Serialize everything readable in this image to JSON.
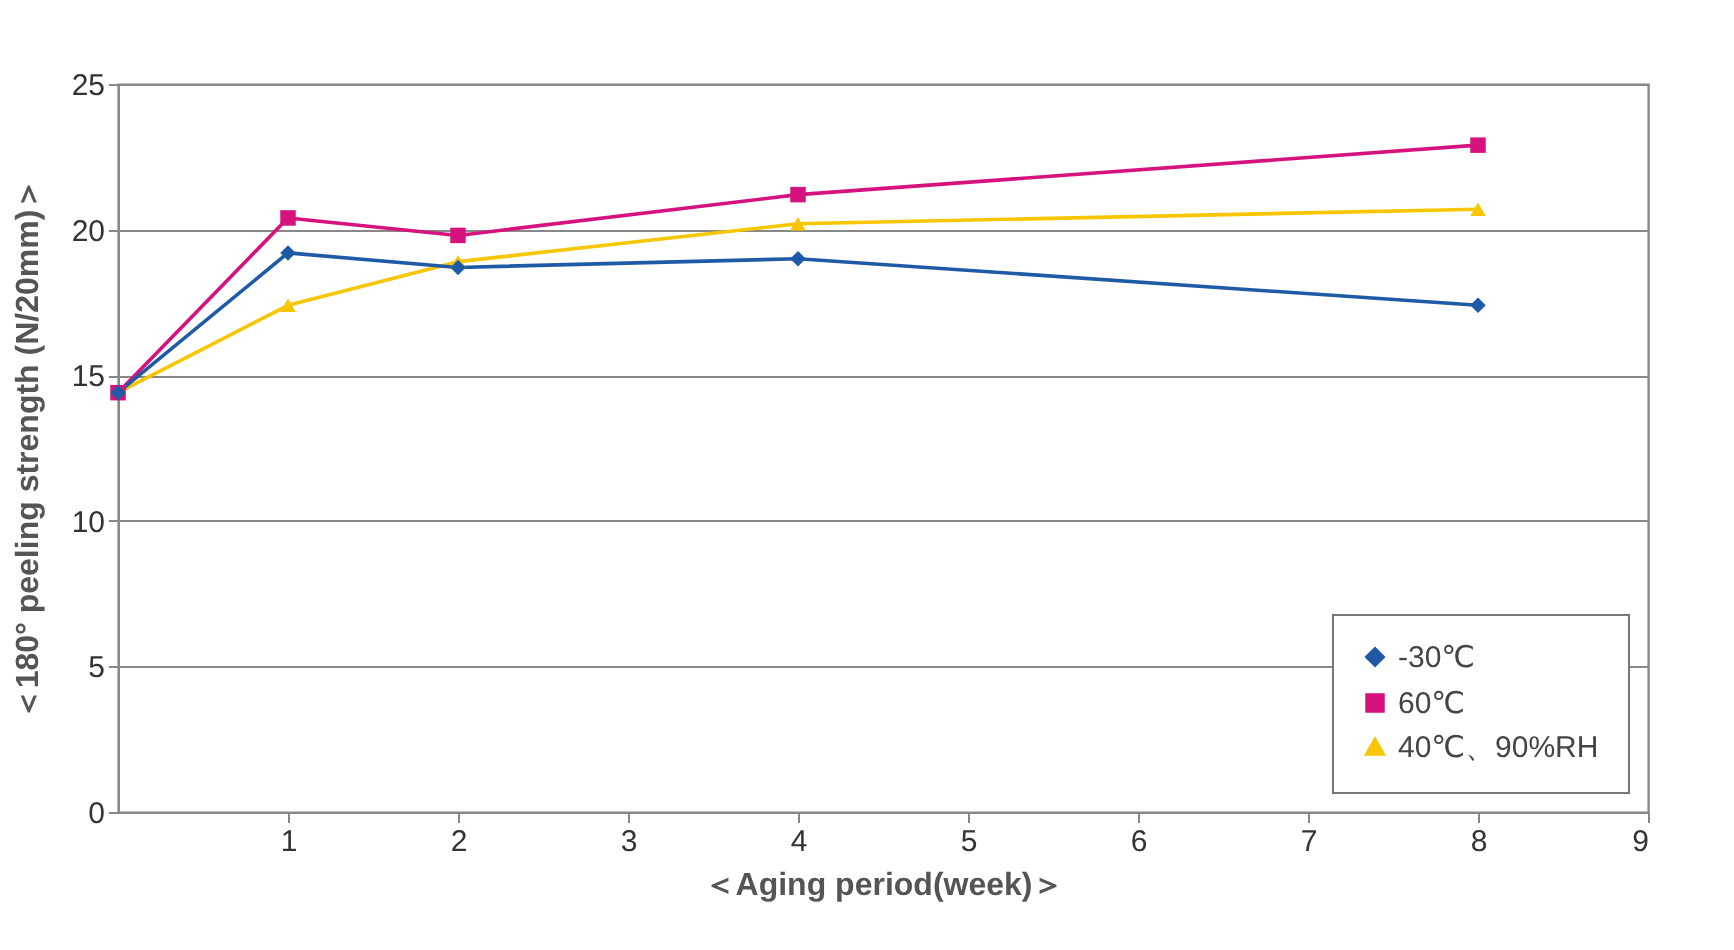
{
  "chart_data": {
    "type": "line",
    "xlabel": "＜Aging period(week)＞",
    "ylabel": "＜180°  peeling strength (N/20mm)＞",
    "x": [
      0,
      1,
      2,
      4,
      8
    ],
    "series": [
      {
        "name": "-30℃",
        "color": "#1f5aa6",
        "marker": "diamond",
        "values": [
          14.4,
          19.2,
          18.7,
          19.0,
          17.4
        ]
      },
      {
        "name": "60℃",
        "color": "#d6127e",
        "marker": "square",
        "values": [
          14.4,
          20.4,
          19.8,
          21.2,
          22.9
        ]
      },
      {
        "name": "40℃、90%RH",
        "color": "#f7c600",
        "marker": "triangle",
        "values": [
          14.4,
          17.4,
          18.9,
          20.2,
          20.7
        ]
      }
    ],
    "xlim": [
      0,
      9
    ],
    "xticks": [
      1,
      2,
      3,
      4,
      5,
      6,
      7,
      8,
      9
    ],
    "ylim": [
      0,
      25
    ],
    "yticks": [
      0,
      5,
      10,
      15,
      20,
      25
    ],
    "grid": "y",
    "legend": "bottom right",
    "line_style": "solid"
  }
}
